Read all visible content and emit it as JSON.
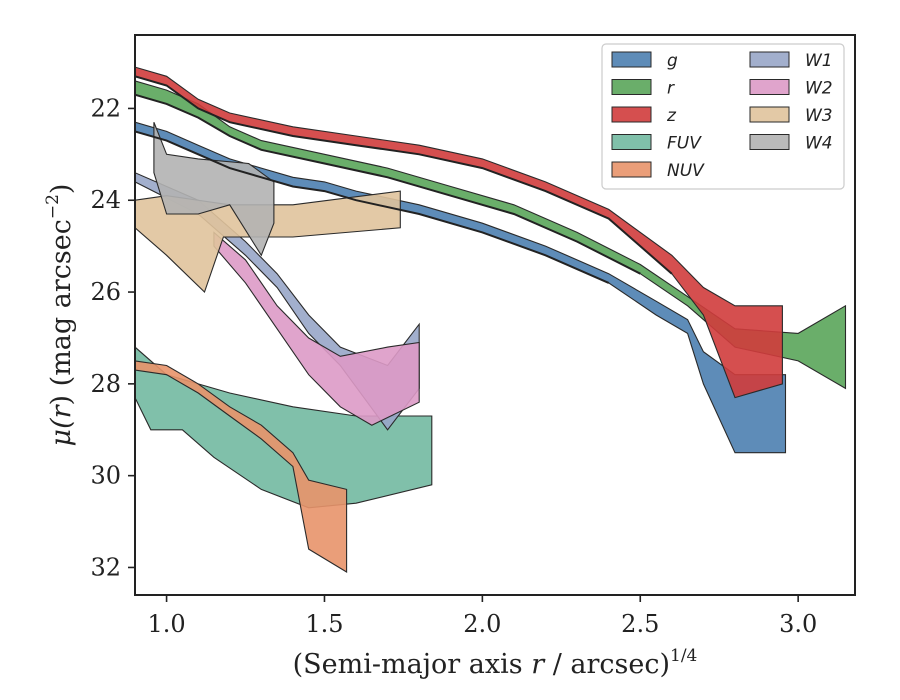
{
  "chart_data": {
    "type": "area",
    "xlabel_main": "(Semi-major axis ",
    "xlabel_var": "r",
    "xlabel_mid": " / arcsec)",
    "xlabel_sup": "1/4",
    "ylabel_main": "μ(",
    "ylabel_var": "r",
    "ylabel_end": ") (mag arcsec",
    "ylabel_sup": "−2",
    "ylabel_close": ")",
    "xlim": [
      0.9,
      3.18
    ],
    "ylim": [
      32.6,
      20.4
    ],
    "y_inverted": true,
    "xticks": [
      "1.0",
      "1.5",
      "2.0",
      "2.5",
      "3.0"
    ],
    "xtick_values": [
      1.0,
      1.5,
      2.0,
      2.5,
      3.0
    ],
    "yticks": [
      "22",
      "24",
      "26",
      "28",
      "30",
      "32"
    ],
    "ytick_values": [
      22,
      24,
      26,
      28,
      30,
      32
    ],
    "grid": false,
    "legend_position": "top-right",
    "series": [
      {
        "name": "g",
        "color": "#4c7fb0",
        "upper": [
          [
            0.9,
            22.3
          ],
          [
            1.0,
            22.5
          ],
          [
            1.1,
            22.8
          ],
          [
            1.2,
            23.1
          ],
          [
            1.3,
            23.3
          ],
          [
            1.4,
            23.5
          ],
          [
            1.5,
            23.6
          ],
          [
            1.6,
            23.8
          ],
          [
            1.8,
            24.1
          ],
          [
            2.0,
            24.5
          ],
          [
            2.2,
            25.0
          ],
          [
            2.4,
            25.6
          ],
          [
            2.55,
            26.2
          ],
          [
            2.65,
            26.6
          ],
          [
            2.7,
            27.3
          ],
          [
            2.8,
            27.8
          ],
          [
            2.96,
            27.8
          ]
        ],
        "lower": [
          [
            0.9,
            22.5
          ],
          [
            1.0,
            22.7
          ],
          [
            1.1,
            23.0
          ],
          [
            1.2,
            23.3
          ],
          [
            1.3,
            23.5
          ],
          [
            1.4,
            23.7
          ],
          [
            1.5,
            23.8
          ],
          [
            1.6,
            24.0
          ],
          [
            1.8,
            24.3
          ],
          [
            2.0,
            24.7
          ],
          [
            2.2,
            25.2
          ],
          [
            2.4,
            25.8
          ],
          [
            2.55,
            26.5
          ],
          [
            2.65,
            26.9
          ],
          [
            2.7,
            28.0
          ],
          [
            2.8,
            29.5
          ],
          [
            2.96,
            29.5
          ]
        ]
      },
      {
        "name": "r",
        "color": "#5aa55a",
        "upper": [
          [
            0.9,
            21.4
          ],
          [
            1.0,
            21.6
          ],
          [
            1.1,
            21.9
          ],
          [
            1.2,
            22.4
          ],
          [
            1.3,
            22.7
          ],
          [
            1.5,
            23.0
          ],
          [
            1.7,
            23.3
          ],
          [
            1.9,
            23.7
          ],
          [
            2.1,
            24.1
          ],
          [
            2.3,
            24.7
          ],
          [
            2.5,
            25.4
          ],
          [
            2.65,
            26.1
          ],
          [
            2.8,
            26.8
          ],
          [
            3.0,
            26.9
          ],
          [
            3.15,
            26.3
          ]
        ],
        "lower": [
          [
            0.9,
            21.7
          ],
          [
            1.0,
            21.9
          ],
          [
            1.1,
            22.2
          ],
          [
            1.2,
            22.6
          ],
          [
            1.3,
            22.9
          ],
          [
            1.5,
            23.2
          ],
          [
            1.7,
            23.5
          ],
          [
            1.9,
            23.9
          ],
          [
            2.1,
            24.3
          ],
          [
            2.3,
            24.9
          ],
          [
            2.5,
            25.6
          ],
          [
            2.65,
            26.3
          ],
          [
            2.8,
            27.2
          ],
          [
            3.0,
            27.5
          ],
          [
            3.15,
            28.1
          ]
        ]
      },
      {
        "name": "z",
        "color": "#d03c3c",
        "upper": [
          [
            0.9,
            21.1
          ],
          [
            1.0,
            21.3
          ],
          [
            1.1,
            21.8
          ],
          [
            1.2,
            22.1
          ],
          [
            1.4,
            22.4
          ],
          [
            1.6,
            22.6
          ],
          [
            1.8,
            22.8
          ],
          [
            2.0,
            23.1
          ],
          [
            2.2,
            23.6
          ],
          [
            2.4,
            24.2
          ],
          [
            2.6,
            25.2
          ],
          [
            2.7,
            25.9
          ],
          [
            2.8,
            26.3
          ],
          [
            2.95,
            26.3
          ]
        ],
        "lower": [
          [
            0.9,
            21.3
          ],
          [
            1.0,
            21.5
          ],
          [
            1.1,
            22.0
          ],
          [
            1.2,
            22.3
          ],
          [
            1.4,
            22.6
          ],
          [
            1.6,
            22.8
          ],
          [
            1.8,
            23.0
          ],
          [
            2.0,
            23.3
          ],
          [
            2.2,
            23.8
          ],
          [
            2.4,
            24.4
          ],
          [
            2.6,
            25.6
          ],
          [
            2.7,
            26.5
          ],
          [
            2.8,
            28.3
          ],
          [
            2.95,
            28.0
          ]
        ]
      },
      {
        "name": "FUV",
        "color": "#72b9a1",
        "upper": [
          [
            0.9,
            27.2
          ],
          [
            1.0,
            27.8
          ],
          [
            1.1,
            28.0
          ],
          [
            1.2,
            28.2
          ],
          [
            1.4,
            28.5
          ],
          [
            1.6,
            28.7
          ],
          [
            1.84,
            28.7
          ]
        ],
        "lower": [
          [
            0.9,
            28.3
          ],
          [
            0.95,
            29.0
          ],
          [
            1.05,
            29.0
          ],
          [
            1.15,
            29.6
          ],
          [
            1.3,
            30.3
          ],
          [
            1.45,
            30.7
          ],
          [
            1.6,
            30.6
          ],
          [
            1.84,
            30.2
          ]
        ]
      },
      {
        "name": "NUV",
        "color": "#e8936a",
        "upper": [
          [
            0.9,
            27.5
          ],
          [
            1.0,
            27.6
          ],
          [
            1.1,
            28.0
          ],
          [
            1.2,
            28.5
          ],
          [
            1.3,
            28.9
          ],
          [
            1.4,
            29.5
          ],
          [
            1.45,
            30.1
          ],
          [
            1.57,
            30.3
          ]
        ],
        "lower": [
          [
            0.9,
            27.7
          ],
          [
            1.0,
            27.8
          ],
          [
            1.1,
            28.2
          ],
          [
            1.2,
            28.7
          ],
          [
            1.3,
            29.2
          ],
          [
            1.4,
            29.8
          ],
          [
            1.45,
            31.6
          ],
          [
            1.57,
            32.1
          ]
        ]
      },
      {
        "name": "W1",
        "color": "#98a6c8",
        "upper": [
          [
            0.9,
            23.4
          ],
          [
            1.1,
            24.0
          ],
          [
            1.25,
            24.9
          ],
          [
            1.35,
            25.6
          ],
          [
            1.45,
            26.5
          ],
          [
            1.55,
            27.2
          ],
          [
            1.7,
            27.6
          ],
          [
            1.8,
            26.7
          ]
        ],
        "lower": [
          [
            0.9,
            23.6
          ],
          [
            1.1,
            24.3
          ],
          [
            1.25,
            25.2
          ],
          [
            1.35,
            25.9
          ],
          [
            1.45,
            26.9
          ],
          [
            1.55,
            27.6
          ],
          [
            1.7,
            29.0
          ],
          [
            1.8,
            28.1
          ]
        ]
      },
      {
        "name": "W2",
        "color": "#dd9ac6",
        "upper": [
          [
            1.15,
            24.7
          ],
          [
            1.25,
            25.3
          ],
          [
            1.35,
            26.3
          ],
          [
            1.45,
            27.0
          ],
          [
            1.55,
            27.4
          ],
          [
            1.7,
            27.2
          ],
          [
            1.8,
            27.1
          ]
        ],
        "lower": [
          [
            1.15,
            25.0
          ],
          [
            1.25,
            25.8
          ],
          [
            1.35,
            26.8
          ],
          [
            1.45,
            27.8
          ],
          [
            1.55,
            28.5
          ],
          [
            1.65,
            28.9
          ],
          [
            1.8,
            28.4
          ]
        ]
      },
      {
        "name": "W3",
        "color": "#e0c39c",
        "upper": [
          [
            0.9,
            24.0
          ],
          [
            1.0,
            23.9
          ],
          [
            1.2,
            24.1
          ],
          [
            1.4,
            24.1
          ],
          [
            1.74,
            23.8
          ]
        ],
        "lower": [
          [
            0.9,
            24.6
          ],
          [
            1.0,
            25.2
          ],
          [
            1.12,
            26.0
          ],
          [
            1.18,
            24.8
          ],
          [
            1.4,
            24.8
          ],
          [
            1.74,
            24.6
          ]
        ]
      },
      {
        "name": "W4",
        "color": "#b3b3b3",
        "upper": [
          [
            0.96,
            22.3
          ],
          [
            1.0,
            23.0
          ],
          [
            1.1,
            23.1
          ],
          [
            1.26,
            23.2
          ],
          [
            1.34,
            23.6
          ]
        ],
        "lower": [
          [
            0.96,
            23.4
          ],
          [
            1.0,
            24.3
          ],
          [
            1.1,
            24.3
          ],
          [
            1.2,
            24.1
          ],
          [
            1.3,
            25.2
          ],
          [
            1.34,
            24.5
          ]
        ]
      }
    ],
    "legend_col1": [
      "g",
      "r",
      "z",
      "FUV",
      "NUV"
    ],
    "legend_col2": [
      "W1",
      "W2",
      "W3",
      "W4"
    ],
    "outline_curves": [
      [
        [
          0.9,
          21.3
        ],
        [
          1.0,
          21.5
        ],
        [
          1.1,
          22.0
        ],
        [
          1.2,
          22.3
        ],
        [
          1.4,
          22.6
        ],
        [
          1.6,
          22.8
        ],
        [
          1.8,
          23.0
        ],
        [
          2.0,
          23.3
        ],
        [
          2.2,
          23.8
        ],
        [
          2.4,
          24.4
        ],
        [
          2.6,
          25.6
        ]
      ],
      [
        [
          0.9,
          21.7
        ],
        [
          1.0,
          21.9
        ],
        [
          1.1,
          22.2
        ],
        [
          1.2,
          22.6
        ],
        [
          1.3,
          22.9
        ],
        [
          1.5,
          23.2
        ],
        [
          1.7,
          23.5
        ],
        [
          1.9,
          23.9
        ],
        [
          2.1,
          24.3
        ],
        [
          2.3,
          24.9
        ],
        [
          2.5,
          25.6
        ]
      ],
      [
        [
          0.9,
          22.5
        ],
        [
          1.0,
          22.7
        ],
        [
          1.1,
          23.0
        ],
        [
          1.2,
          23.3
        ],
        [
          1.3,
          23.5
        ],
        [
          1.4,
          23.7
        ],
        [
          1.5,
          23.8
        ],
        [
          1.6,
          24.0
        ],
        [
          1.8,
          24.3
        ],
        [
          2.0,
          24.7
        ],
        [
          2.2,
          25.2
        ],
        [
          2.4,
          25.8
        ]
      ]
    ]
  }
}
